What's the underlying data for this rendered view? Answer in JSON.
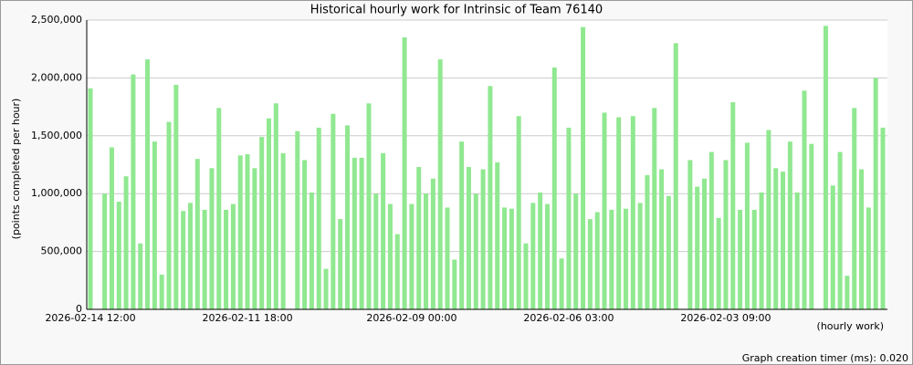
{
  "chart_data": {
    "type": "bar",
    "title": "Historical hourly work for Intrinsic of Team 76140",
    "y_label": "(points completed per hour)",
    "x_label": "(hourly work)",
    "footer": "Graph creation timer (ms): 0.020",
    "color": "#90e890",
    "grid": true,
    "ylim": [
      0,
      2500000
    ],
    "yticks": [
      0,
      {
        "value": 500000,
        "label": "500,000"
      },
      {
        "value": 1000000,
        "label": "1,000,000"
      },
      {
        "value": 1500000,
        "label": "1,500,000"
      },
      {
        "value": 2000000,
        "label": "2,000,000"
      },
      {
        "value": 2500000,
        "label": "2,500,000"
      }
    ],
    "categories": [
      "2026-02-14 12:00",
      null,
      null,
      null,
      null,
      null,
      null,
      null,
      null,
      null,
      null,
      null,
      null,
      null,
      null,
      null,
      null,
      null,
      null,
      null,
      null,
      null,
      "2026-02-11 18:00",
      null,
      null,
      null,
      null,
      null,
      null,
      null,
      null,
      null,
      null,
      null,
      null,
      null,
      null,
      null,
      null,
      null,
      null,
      null,
      null,
      null,
      null,
      "2026-02-09 00:00",
      null,
      null,
      null,
      null,
      null,
      null,
      null,
      null,
      null,
      null,
      null,
      null,
      null,
      null,
      null,
      null,
      null,
      null,
      null,
      null,
      null,
      "2026-02-06 03:00",
      null,
      null,
      null,
      null,
      null,
      null,
      null,
      null,
      null,
      null,
      null,
      null,
      null,
      null,
      null,
      null,
      null,
      null,
      null,
      null,
      null,
      "2026-02-03 09:00",
      null,
      null,
      null,
      null,
      null,
      null,
      null,
      null,
      null,
      null,
      null,
      null,
      null,
      null,
      null,
      null,
      null,
      null,
      null,
      null,
      null,
      null
    ],
    "values": [
      1910000,
      null,
      1000000,
      1400000,
      930000,
      1150000,
      2030000,
      570000,
      2160000,
      1450000,
      300000,
      1620000,
      1940000,
      850000,
      920000,
      1300000,
      860000,
      1220000,
      1740000,
      860000,
      910000,
      1330000,
      1340000,
      1220000,
      1490000,
      1650000,
      1780000,
      1350000,
      null,
      1540000,
      1290000,
      1010000,
      1570000,
      350000,
      1690000,
      780000,
      1590000,
      1310000,
      1310000,
      1780000,
      1000000,
      1350000,
      910000,
      650000,
      2350000,
      910000,
      1230000,
      1000000,
      1130000,
      2160000,
      880000,
      430000,
      1450000,
      1230000,
      1000000,
      1210000,
      1930000,
      1270000,
      880000,
      870000,
      1670000,
      570000,
      920000,
      1010000,
      910000,
      2090000,
      440000,
      1570000,
      1000000,
      2440000,
      780000,
      840000,
      1700000,
      860000,
      1660000,
      870000,
      1670000,
      920000,
      1160000,
      1740000,
      1210000,
      980000,
      2300000,
      null,
      1290000,
      1060000,
      1130000,
      1360000,
      790000,
      1290000,
      1790000,
      860000,
      1440000,
      860000,
      1010000,
      1550000,
      1220000,
      1190000,
      1450000,
      1010000,
      1890000,
      1430000,
      null,
      2450000,
      1070000,
      1360000,
      290000,
      1740000,
      1210000,
      880000,
      2000000,
      1570000
    ]
  }
}
